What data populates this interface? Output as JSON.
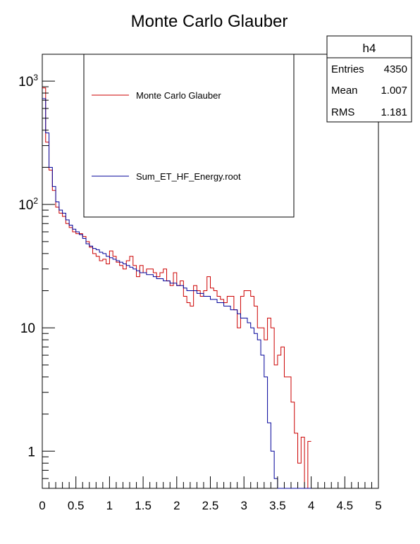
{
  "chart_data": {
    "type": "histogram",
    "title": "Monte Carlo Glauber",
    "xlabel": "",
    "ylabel": "",
    "xlim": [
      0,
      5
    ],
    "ylim": [
      0.5,
      1650
    ],
    "y_scale": "log",
    "grid": false,
    "bin_edges_start": 0,
    "bin_width": 0.05,
    "x_ticks": [
      "0",
      "0.5",
      "1",
      "1.5",
      "2",
      "2.5",
      "3",
      "3.5",
      "4",
      "4.5",
      "5"
    ],
    "x_tick_values": [
      0,
      0.5,
      1,
      1.5,
      2,
      2.5,
      3,
      3.5,
      4,
      4.5,
      5
    ],
    "y_ticks": [
      {
        "value": 1000,
        "base": "10",
        "exp": "3"
      },
      {
        "value": 100,
        "base": "10",
        "exp": "2"
      },
      {
        "value": 10,
        "base": "10",
        "exp": ""
      },
      {
        "value": 1,
        "base": "1",
        "exp": ""
      }
    ],
    "legend": {
      "placement": "top-left",
      "entries": [
        {
          "label": "Monte Carlo Glauber",
          "color": "#cc0000"
        },
        {
          "label": "Sum_ET_HF_Energy.root",
          "color": "#000099"
        }
      ]
    },
    "series": [
      {
        "name": "Monte Carlo Glauber",
        "color": "#cc0000",
        "values": [
          880,
          320,
          190,
          130,
          95,
          85,
          80,
          70,
          65,
          60,
          58,
          58,
          55,
          50,
          45,
          40,
          38,
          35,
          36,
          33,
          42,
          38,
          34,
          32,
          30,
          35,
          38,
          32,
          26,
          32,
          28,
          30,
          30,
          28,
          26,
          28,
          30,
          24,
          22,
          28,
          22,
          24,
          18,
          16,
          15,
          22,
          20,
          18,
          20,
          26,
          21,
          20,
          18,
          17,
          16,
          18,
          18,
          14,
          10,
          18,
          20,
          20,
          18,
          15,
          10,
          10,
          8,
          12,
          10,
          5,
          6,
          7,
          4,
          4,
          2.5,
          1.4,
          0.8,
          1.3,
          0.0,
          1.2
        ]
      },
      {
        "name": "Sum_ET_HF_Energy.root",
        "color": "#000099",
        "values": [
          720,
          380,
          200,
          140,
          105,
          90,
          85,
          75,
          68,
          63,
          60,
          57,
          53,
          48,
          46,
          44,
          43,
          41,
          40,
          38,
          37,
          36,
          35,
          34,
          33,
          32,
          31,
          30,
          29,
          28,
          28,
          27,
          27,
          26,
          25,
          25,
          24,
          24,
          23,
          23,
          22,
          22,
          21,
          20,
          20,
          20,
          19,
          19,
          18,
          18,
          17,
          17,
          16,
          16,
          15,
          15,
          14,
          14,
          13,
          12,
          12,
          11,
          10,
          9,
          8,
          6,
          4,
          1.7,
          1.0,
          0.6,
          0.5,
          0.5,
          0.5,
          0.5,
          0.5,
          0.5,
          0.5,
          0.5,
          0.5,
          0.5
        ]
      }
    ]
  },
  "stats_box": {
    "title": "h4",
    "rows": [
      {
        "label": "Entries",
        "value": "4350"
      },
      {
        "label": "Mean",
        "value": "1.007"
      },
      {
        "label": "RMS",
        "value": "1.181"
      }
    ]
  }
}
